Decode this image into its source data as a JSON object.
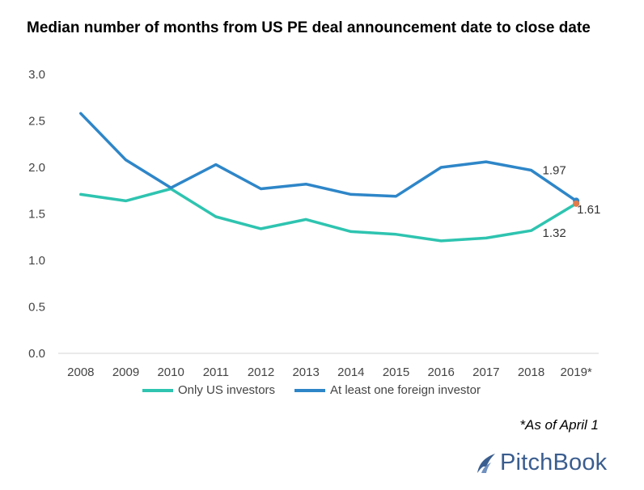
{
  "chart_data": {
    "type": "line",
    "title": "Median number of months from US PE deal announcement date to close date",
    "categories": [
      "2008",
      "2009",
      "2010",
      "2011",
      "2012",
      "2013",
      "2014",
      "2015",
      "2016",
      "2017",
      "2018",
      "2019*"
    ],
    "ylim": [
      0,
      3.0
    ],
    "yticks": [
      "0.0",
      "0.5",
      "1.0",
      "1.5",
      "2.0",
      "2.5",
      "3.0"
    ],
    "series": [
      {
        "name": "Only US investors",
        "color": "#2ec4b0",
        "values": [
          1.71,
          1.64,
          1.77,
          1.47,
          1.34,
          1.44,
          1.31,
          1.28,
          1.21,
          1.24,
          1.32,
          1.61
        ]
      },
      {
        "name": "At least one foreign investor",
        "color": "#2e86c8",
        "values": [
          2.58,
          2.08,
          1.78,
          2.03,
          1.77,
          1.82,
          1.71,
          1.69,
          2.0,
          2.06,
          1.97,
          1.64
        ]
      }
    ],
    "data_labels": [
      {
        "text": "1.97",
        "series": 1,
        "index": 10
      },
      {
        "text": "1.61",
        "series": 0,
        "index": 11
      },
      {
        "text": "1.32",
        "series": 0,
        "index": 10
      }
    ],
    "legend_position": "bottom",
    "grid": false
  },
  "footnote": "*As of April 1",
  "brand": {
    "name": "PitchBook"
  }
}
